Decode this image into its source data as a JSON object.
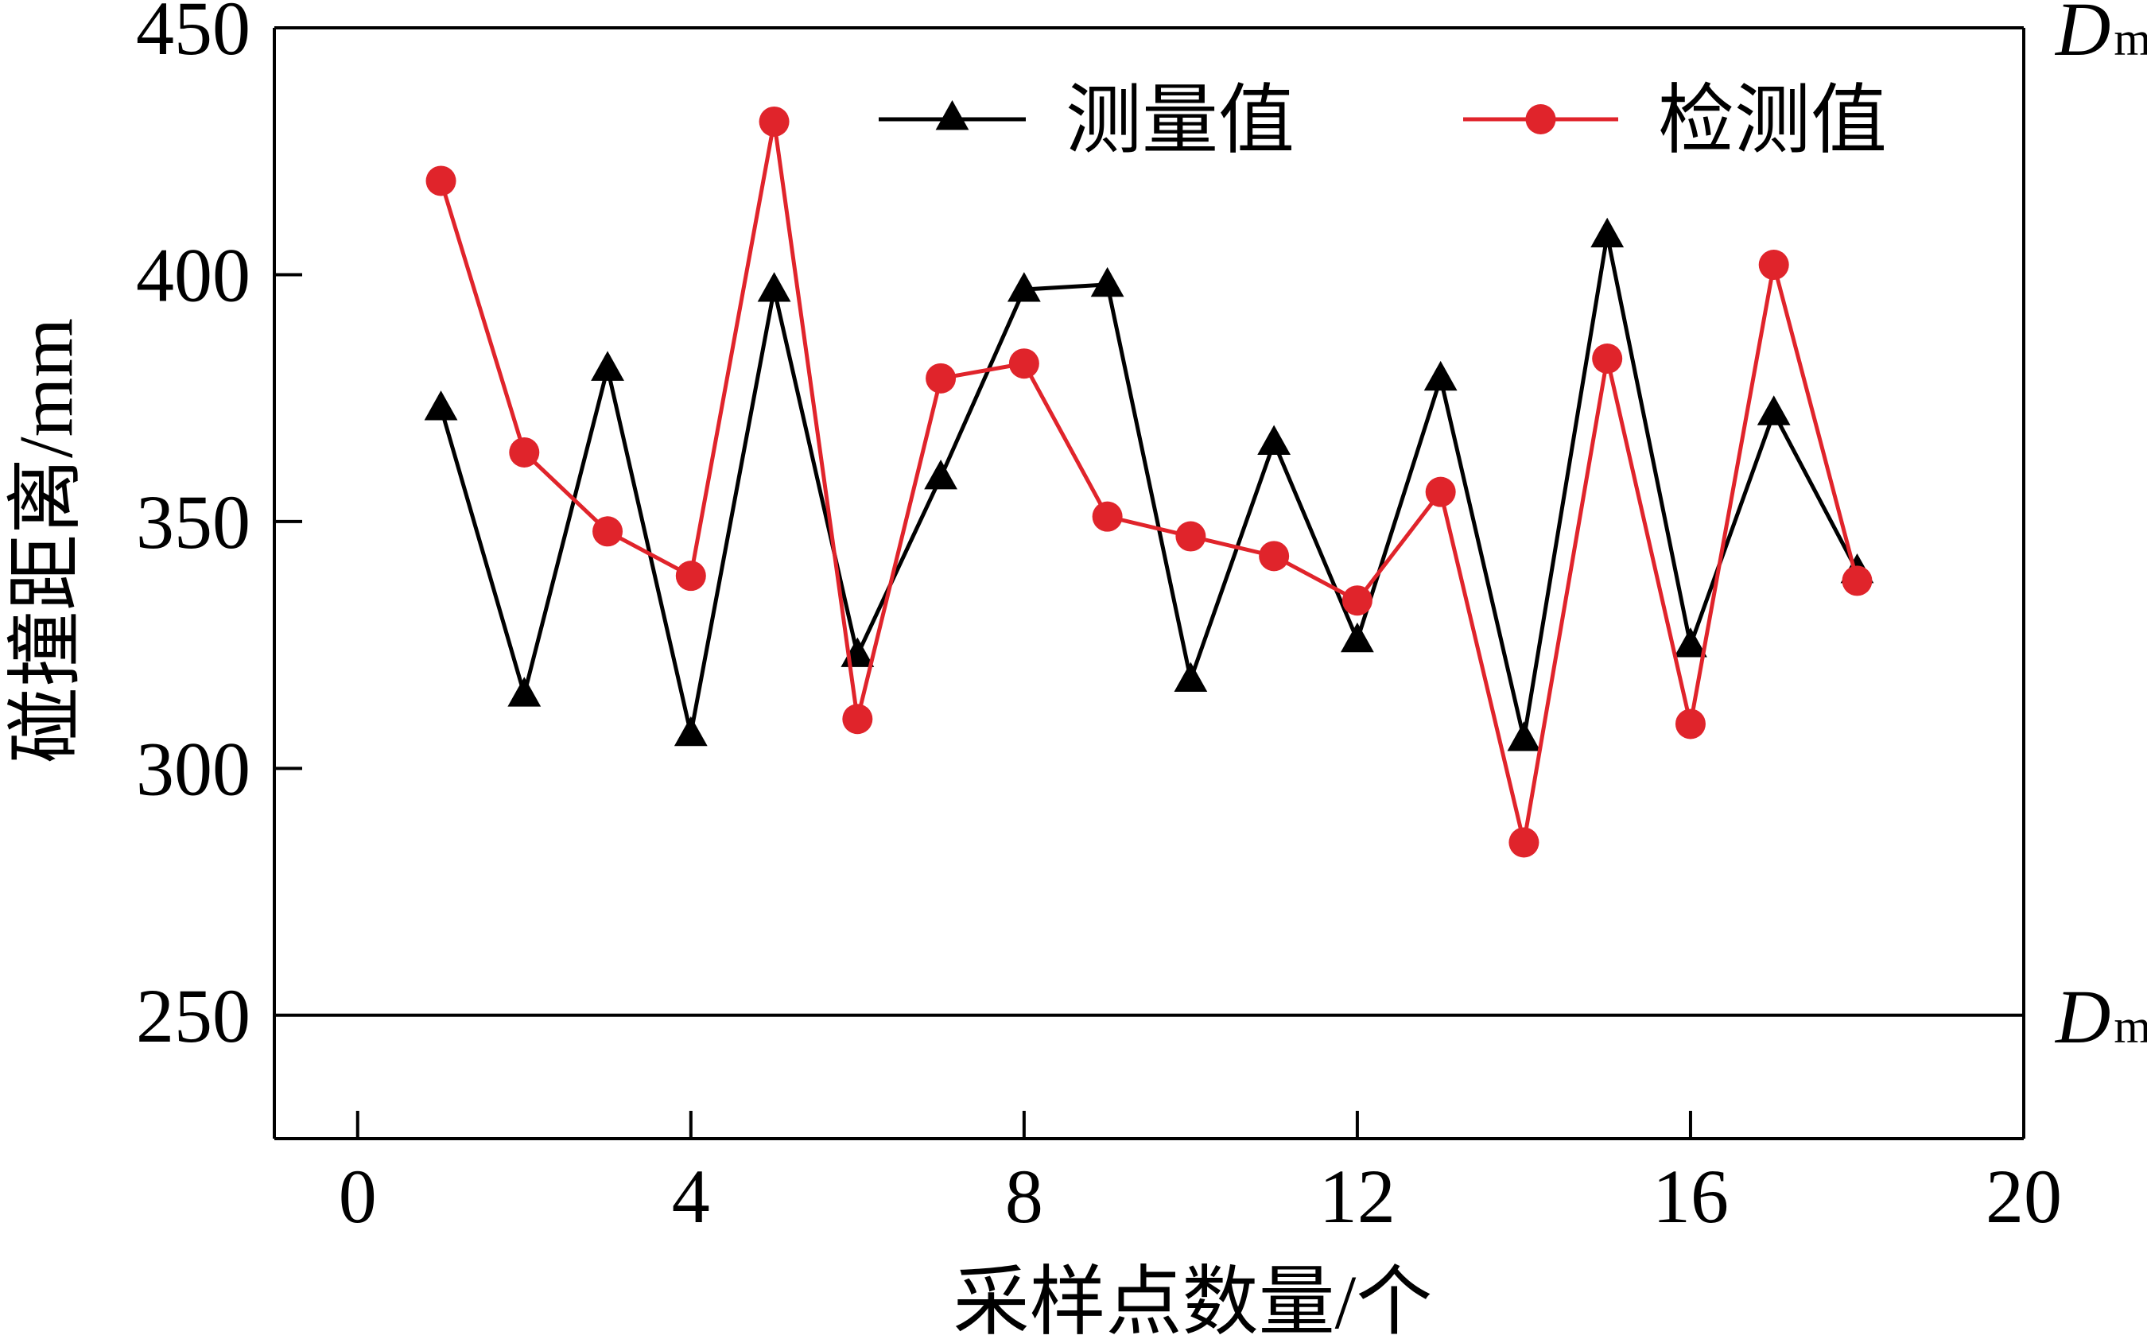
{
  "chart_data": {
    "type": "line",
    "xlabel": "采样点数量/个",
    "ylabel": "碰撞距离/mm",
    "xlim": [
      -1,
      20
    ],
    "ylim": [
      225,
      450
    ],
    "xticks": [
      0,
      4,
      8,
      12,
      16,
      20
    ],
    "yticks": [
      250,
      300,
      350,
      400,
      450
    ],
    "x": [
      1,
      2,
      3,
      4,
      5,
      6,
      7,
      8,
      9,
      10,
      11,
      12,
      13,
      14,
      15,
      16,
      17,
      18
    ],
    "series": [
      {
        "name": "测量值",
        "color": "#000000",
        "marker": "triangle",
        "values": [
          373,
          315,
          381,
          307,
          397,
          323,
          359,
          397,
          398,
          318,
          366,
          326,
          379,
          306,
          408,
          325,
          372,
          340
        ]
      },
      {
        "name": "检测值",
        "color": "#e0242b",
        "marker": "circle",
        "values": [
          419,
          364,
          348,
          339,
          431,
          310,
          379,
          382,
          351,
          347,
          343,
          334,
          356,
          285,
          383,
          309,
          402,
          338
        ]
      }
    ],
    "reference_lines": [
      {
        "value": 450,
        "label_main": "D",
        "label_sub": "max"
      },
      {
        "value": 250,
        "label_main": "D",
        "label_sub": "min"
      }
    ],
    "legend_position": "top-center",
    "grid": false
  }
}
